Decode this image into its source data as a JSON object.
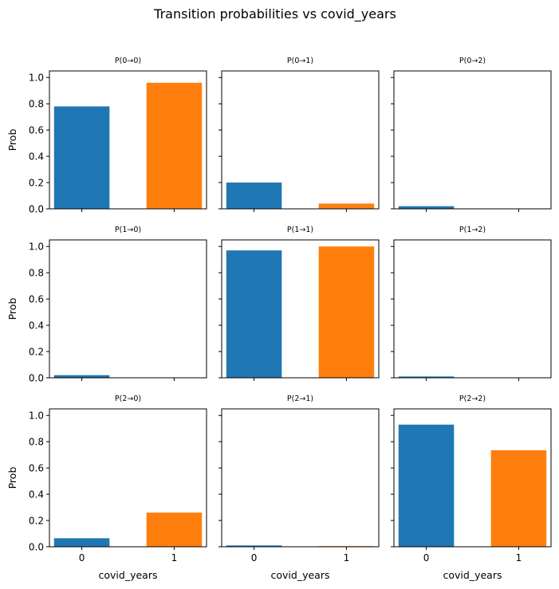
{
  "chart_data": {
    "type": "bar",
    "title": "Transition probabilities vs covid_years",
    "xlabel": "covid_years",
    "ylabel": "Prob",
    "categories": [
      "0",
      "1"
    ],
    "colors": [
      "#1f77b4",
      "#ff7f0e"
    ],
    "ylim": [
      0,
      1.05
    ],
    "yticks": [
      "0.0",
      "0.2",
      "0.4",
      "0.6",
      "0.8",
      "1.0"
    ],
    "subplots": [
      {
        "title": "P(0→0)",
        "values": [
          0.78,
          0.96
        ]
      },
      {
        "title": "P(0→1)",
        "values": [
          0.2,
          0.04
        ]
      },
      {
        "title": "P(0→2)",
        "values": [
          0.02,
          0.0
        ]
      },
      {
        "title": "P(1→0)",
        "values": [
          0.02,
          0.0
        ]
      },
      {
        "title": "P(1→1)",
        "values": [
          0.97,
          1.0
        ]
      },
      {
        "title": "P(1→2)",
        "values": [
          0.01,
          0.0
        ]
      },
      {
        "title": "P(2→0)",
        "values": [
          0.065,
          0.26
        ]
      },
      {
        "title": "P(2→1)",
        "values": [
          0.01,
          0.005
        ]
      },
      {
        "title": "P(2→2)",
        "values": [
          0.93,
          0.735
        ]
      }
    ]
  }
}
